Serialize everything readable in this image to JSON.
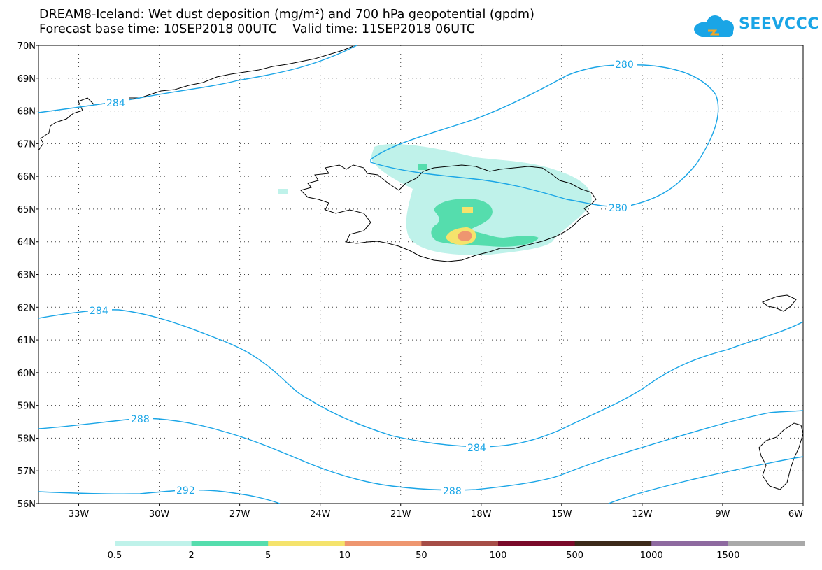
{
  "header": {
    "title_line1": "DREAM8-Iceland: Wet dust deposition (mg/m²) and 700 hPa geopotential (gpdm)",
    "title_line2": "Forecast base time: 10SEP2018 00UTC    Valid time: 11SEP2018 06UTC",
    "logo_text": "SEEVCCC"
  },
  "map": {
    "lat_range": [
      56,
      70
    ],
    "lon_range": [
      -34.5,
      -6
    ],
    "lat_ticks": [
      "56N",
      "57N",
      "58N",
      "59N",
      "60N",
      "61N",
      "62N",
      "63N",
      "64N",
      "65N",
      "66N",
      "67N",
      "68N",
      "69N",
      "70N"
    ],
    "lon_ticks": [
      "33W",
      "30W",
      "27W",
      "24W",
      "21W",
      "18W",
      "15W",
      "12W",
      "9W",
      "6W"
    ],
    "grid": "dotted",
    "contour_color": "#1aa5e6",
    "contour_labels": [
      "280",
      "280",
      "284",
      "284",
      "284",
      "288",
      "288",
      "292"
    ]
  },
  "colorbar": {
    "labels": [
      "0.5",
      "2",
      "5",
      "10",
      "50",
      "100",
      "500",
      "1000",
      "1500"
    ],
    "colors": [
      "#bff2ea",
      "#55ddad",
      "#f5e36c",
      "#ee9670",
      "#a64d47",
      "#7a0a2a",
      "#3c2a1a",
      "#8e6aa0",
      "#a9a9a9"
    ]
  }
}
